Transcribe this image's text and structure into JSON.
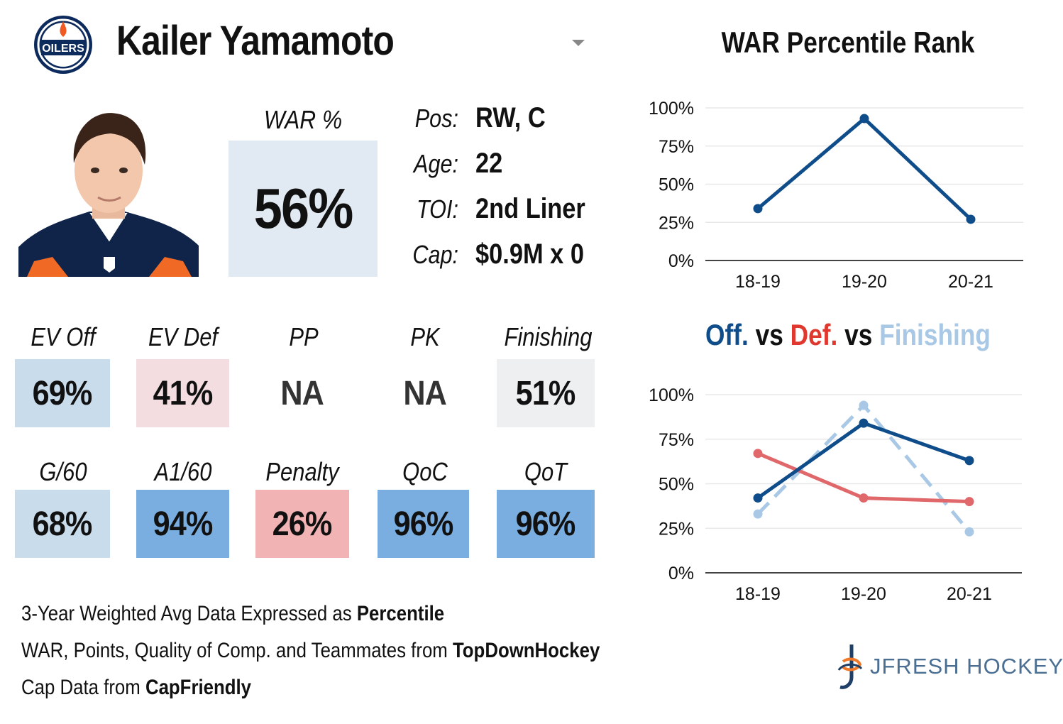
{
  "header": {
    "player_name": "Kailer Yamamoto",
    "team_logo_text": "OILERS"
  },
  "war": {
    "label": "WAR %",
    "value": "56%"
  },
  "info": [
    {
      "label": "Pos:",
      "value": "RW, C"
    },
    {
      "label": "Age:",
      "value": "22"
    },
    {
      "label": "TOI:",
      "value": "2nd Liner"
    },
    {
      "label": "Cap:",
      "value": "$0.9M x 0"
    }
  ],
  "stats_row1": [
    {
      "label": "EV Off",
      "value": "69%",
      "color": "#c9dcec"
    },
    {
      "label": "EV Def",
      "value": "41%",
      "color": "#f3dde0"
    },
    {
      "label": "PP",
      "value": "NA",
      "color": "#ffffff"
    },
    {
      "label": "PK",
      "value": "NA",
      "color": "#ffffff"
    },
    {
      "label": "Finishing",
      "value": "51%",
      "color": "#eeeff1"
    }
  ],
  "stats_row2": [
    {
      "label": "G/60",
      "value": "68%",
      "color": "#c9dcec"
    },
    {
      "label": "A1/60",
      "value": "94%",
      "color": "#7aaee0"
    },
    {
      "label": "Penalty",
      "value": "26%",
      "color": "#f2b3b5"
    },
    {
      "label": "QoC",
      "value": "96%",
      "color": "#7aaee0"
    },
    {
      "label": "QoT",
      "value": "96%",
      "color": "#7aaee0"
    }
  ],
  "footer": {
    "line1_prefix": "3-Year Weighted Avg Data Expressed as ",
    "line1_bold": "Percentile",
    "line2_prefix": "WAR, Points, Quality of Comp. and Teammates from ",
    "line2_bold": "TopDownHockey",
    "line3_prefix": "Cap Data from ",
    "line3_bold": "CapFriendly"
  },
  "brand": {
    "text": "JFRESH HOCKEY"
  },
  "colors": {
    "off": "#0f4c8a",
    "def": "#e0686a",
    "finishing": "#a8c8e6",
    "grid": "#e8e8e8"
  },
  "chart_data": [
    {
      "type": "line",
      "title": "WAR Percentile Rank",
      "categories": [
        "18-19",
        "19-20",
        "20-21"
      ],
      "series": [
        {
          "values": [
            34,
            93,
            27
          ],
          "color": "#0f4c8a",
          "dashed": false
        }
      ],
      "yticks": [
        "0%",
        "25%",
        "50%",
        "75%",
        "100%"
      ],
      "ylim": [
        0,
        100
      ],
      "grid": true
    },
    {
      "type": "line",
      "title_parts": [
        {
          "text": "Off.",
          "color": "#0f4c8a"
        },
        {
          "text": " vs ",
          "color": "#111111"
        },
        {
          "text": "Def.",
          "color": "#e0382e"
        },
        {
          "text": " vs ",
          "color": "#111111"
        },
        {
          "text": "Finishing",
          "color": "#a8c8e6"
        }
      ],
      "categories": [
        "18-19",
        "19-20",
        "20-21"
      ],
      "series": [
        {
          "values": [
            33,
            94,
            23
          ],
          "color": "#a8c8e6",
          "dashed": true
        },
        {
          "values": [
            67,
            42,
            40
          ],
          "color": "#e0686a",
          "dashed": false
        },
        {
          "values": [
            42,
            84,
            63
          ],
          "color": "#0f4c8a",
          "dashed": false
        }
      ],
      "yticks": [
        "0%",
        "25%",
        "50%",
        "75%",
        "100%"
      ],
      "ylim": [
        0,
        100
      ],
      "grid": true
    }
  ]
}
